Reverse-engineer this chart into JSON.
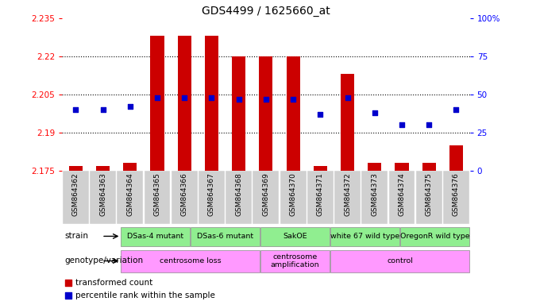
{
  "title": "GDS4499 / 1625660_at",
  "samples": [
    "GSM864362",
    "GSM864363",
    "GSM864364",
    "GSM864365",
    "GSM864366",
    "GSM864367",
    "GSM864368",
    "GSM864369",
    "GSM864370",
    "GSM864371",
    "GSM864372",
    "GSM864373",
    "GSM864374",
    "GSM864375",
    "GSM864376"
  ],
  "transformed_count": [
    2.177,
    2.177,
    2.178,
    2.228,
    2.228,
    2.228,
    2.22,
    2.22,
    2.22,
    2.177,
    2.213,
    2.178,
    2.178,
    2.178,
    2.185
  ],
  "percentile": [
    40,
    40,
    42,
    48,
    48,
    48,
    47,
    47,
    47,
    37,
    48,
    38,
    30,
    30,
    40
  ],
  "ylim_left": [
    2.175,
    2.235
  ],
  "ylim_right": [
    0,
    100
  ],
  "yticks_left": [
    2.175,
    2.19,
    2.205,
    2.22,
    2.235
  ],
  "yticks_right": [
    0,
    25,
    50,
    75,
    100
  ],
  "ytick_labels_left": [
    "2.175",
    "2.19",
    "2.205",
    "2.22",
    "2.235"
  ],
  "ytick_labels_right": [
    "0",
    "25",
    "50",
    "75",
    "100%"
  ],
  "hlines": [
    2.19,
    2.205,
    2.22
  ],
  "strain_groups": [
    {
      "label": "DSas-4 mutant",
      "start": 0,
      "end": 3,
      "color": "#90ee90"
    },
    {
      "label": "DSas-6 mutant",
      "start": 3,
      "end": 6,
      "color": "#90ee90"
    },
    {
      "label": "SakOE",
      "start": 6,
      "end": 9,
      "color": "#90ee90"
    },
    {
      "label": "white 67 wild type",
      "start": 9,
      "end": 12,
      "color": "#90ee90"
    },
    {
      "label": "OregonR wild type",
      "start": 12,
      "end": 15,
      "color": "#90ee90"
    }
  ],
  "genotype_groups": [
    {
      "label": "centrosome loss",
      "start": 0,
      "end": 6,
      "color": "#ff99ff"
    },
    {
      "label": "centrosome\namplification",
      "start": 6,
      "end": 9,
      "color": "#ff99ff"
    },
    {
      "label": "control",
      "start": 9,
      "end": 15,
      "color": "#ff99ff"
    }
  ],
  "bar_color": "#cc0000",
  "dot_color": "#0000cc",
  "background_color": "#ffffff",
  "bar_bottom": 2.175,
  "bar_width": 0.5,
  "dot_size": 25,
  "fig_width": 6.8,
  "fig_height": 3.84,
  "dpi": 100
}
